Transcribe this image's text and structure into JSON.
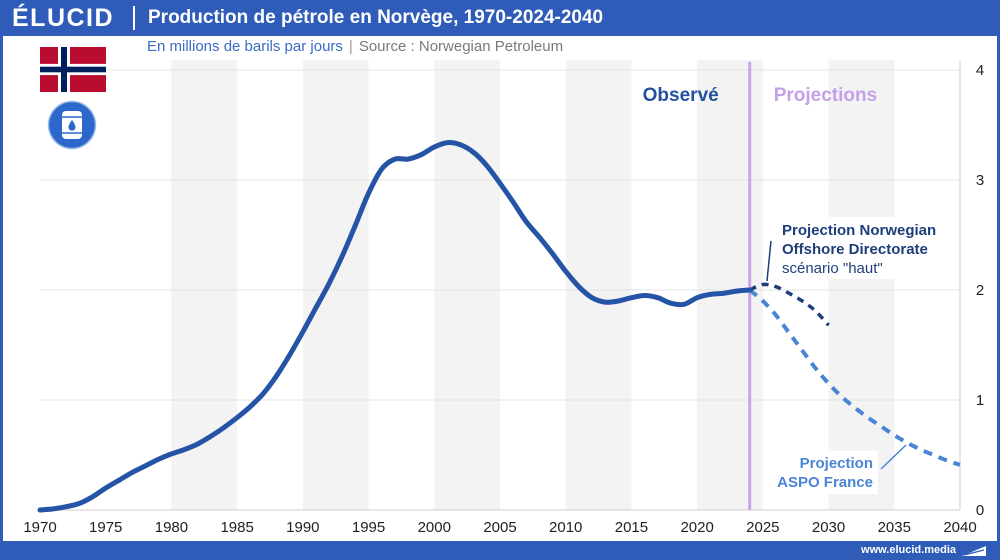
{
  "brand": {
    "logo": "ÉLUCID",
    "url": "www.elucid.media"
  },
  "subtitle_separator": "|",
  "icons": {
    "flag": "norway-flag-icon",
    "barrel": "oil-barrel-icon",
    "brand_mark": "elucid-mark-icon"
  },
  "colors": {
    "brand": "#2e5cb8",
    "divider_line": "#c9a6ec",
    "observed_label": "#24509f",
    "projections_label": "#c4a0ea"
  },
  "chart_data": {
    "type": "line",
    "title": "Production de pétrole en Norvège, 1970-2024-2040",
    "subtitle": "En millions de barils par jours",
    "source": "Source : Norwegian Petroleum",
    "xlim": [
      1970,
      2040
    ],
    "ylim": [
      0,
      4
    ],
    "x_ticks": [
      1970,
      1975,
      1980,
      1985,
      1990,
      1995,
      2000,
      2005,
      2010,
      2015,
      2020,
      2025,
      2030,
      2035,
      2040
    ],
    "y_ticks": [
      0,
      1,
      2,
      3,
      4
    ],
    "y_axis_side": "right",
    "grid": true,
    "reference_line": {
      "x": 2024,
      "label_before": "Observé",
      "label_after": "Projections"
    },
    "series": [
      {
        "line_style": "solid",
        "color": "#2553a5",
        "x": [
          1970,
          1971,
          1972,
          1973,
          1974,
          1975,
          1976,
          1977,
          1978,
          1979,
          1980,
          1981,
          1982,
          1983,
          1984,
          1985,
          1986,
          1987,
          1988,
          1989,
          1990,
          1991,
          1992,
          1993,
          1994,
          1995,
          1996,
          1997,
          1998,
          1999,
          2000,
          2001,
          2002,
          2003,
          2004,
          2005,
          2006,
          2007,
          2008,
          2009,
          2010,
          2011,
          2012,
          2013,
          2014,
          2015,
          2016,
          2017,
          2018,
          2019,
          2020,
          2021,
          2022,
          2023,
          2024
        ],
        "y": [
          0.0,
          0.01,
          0.03,
          0.06,
          0.12,
          0.2,
          0.27,
          0.34,
          0.4,
          0.46,
          0.51,
          0.55,
          0.6,
          0.67,
          0.75,
          0.84,
          0.94,
          1.06,
          1.22,
          1.41,
          1.62,
          1.84,
          2.06,
          2.31,
          2.59,
          2.88,
          3.1,
          3.19,
          3.19,
          3.23,
          3.3,
          3.34,
          3.32,
          3.25,
          3.13,
          2.97,
          2.8,
          2.62,
          2.48,
          2.33,
          2.17,
          2.03,
          1.93,
          1.89,
          1.9,
          1.93,
          1.95,
          1.93,
          1.88,
          1.87,
          1.93,
          1.96,
          1.97,
          1.99,
          2.0
        ]
      },
      {
        "label": [
          "Projection Norwegian",
          "Offshore Directorate",
          "scénario \"haut\""
        ],
        "line_style": "dashed",
        "color": "#1e3e7b",
        "x": [
          2024,
          2025,
          2026,
          2027,
          2028,
          2029,
          2030
        ],
        "y": [
          2.0,
          2.05,
          2.03,
          1.97,
          1.9,
          1.81,
          1.68
        ]
      },
      {
        "label": [
          "Projection",
          "ASPO France"
        ],
        "line_style": "dashed",
        "color": "#4a85d5",
        "x": [
          2024,
          2025,
          2026,
          2027,
          2028,
          2029,
          2030,
          2031,
          2032,
          2033,
          2034,
          2035,
          2036,
          2037,
          2038,
          2039,
          2040
        ],
        "y": [
          2.0,
          1.9,
          1.77,
          1.61,
          1.45,
          1.29,
          1.15,
          1.03,
          0.93,
          0.84,
          0.76,
          0.68,
          0.61,
          0.55,
          0.5,
          0.45,
          0.41
        ]
      }
    ]
  }
}
